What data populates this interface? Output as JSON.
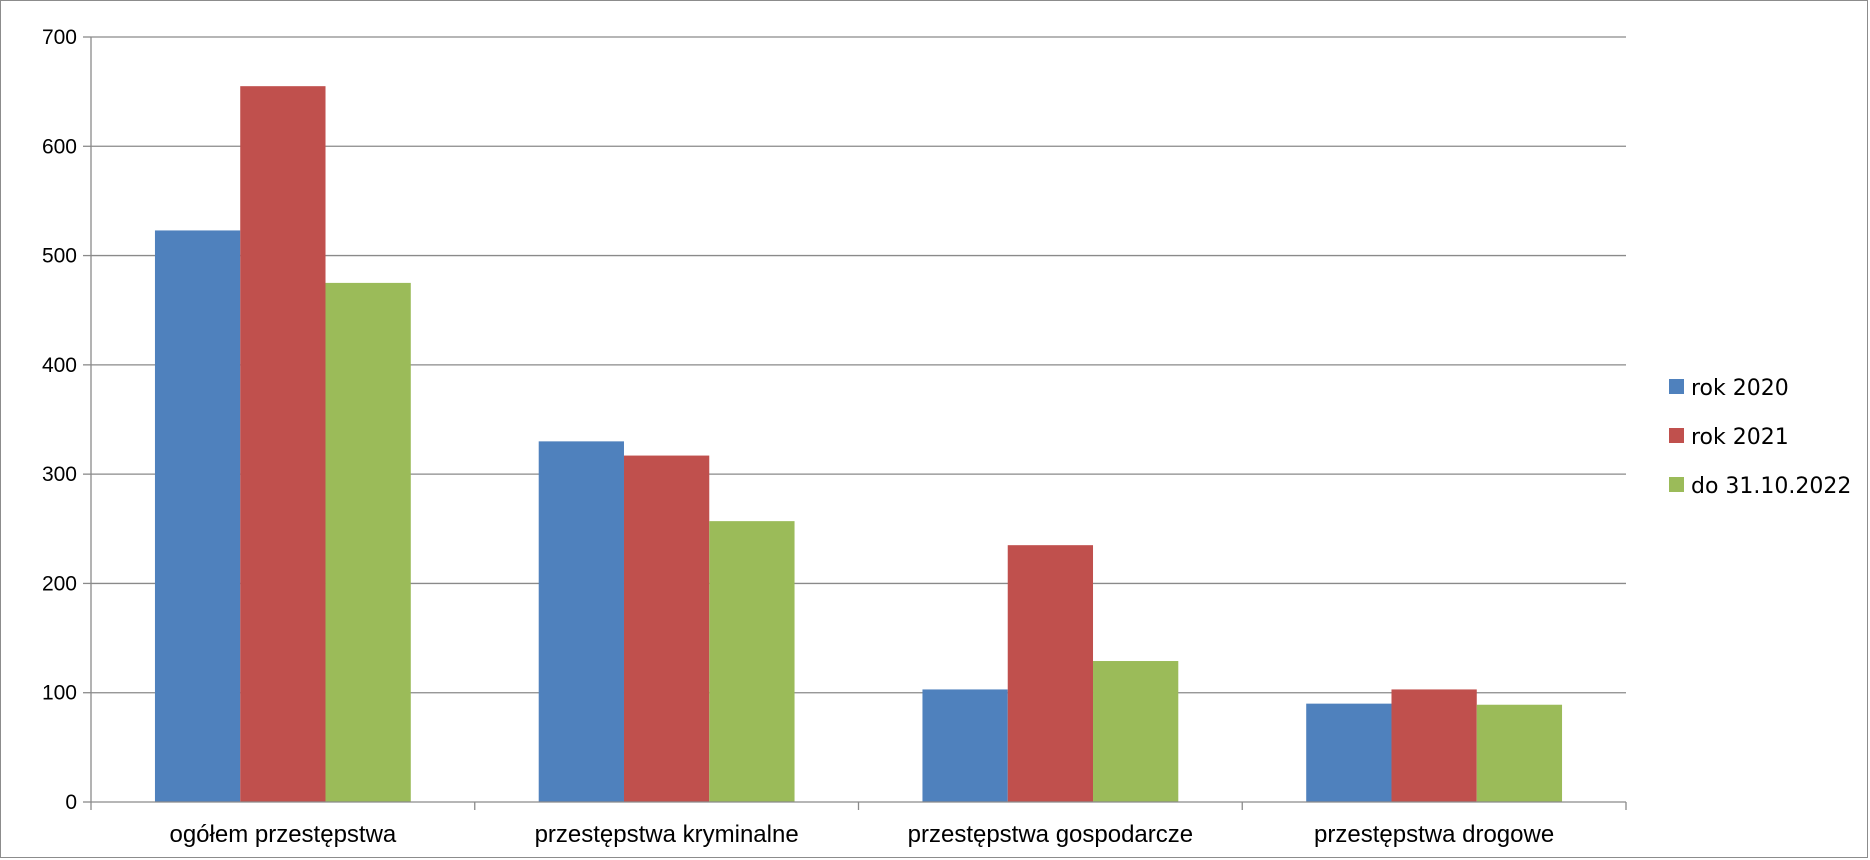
{
  "chart_data": {
    "type": "bar",
    "categories": [
      "ogółem przestępstwa",
      "przestępstwa kryminalne",
      "przestępstwa gospodarcze",
      "przestępstwa drogowe"
    ],
    "series": [
      {
        "name": "rok 2020",
        "color": "#4F81BD",
        "values": [
          523,
          330,
          103,
          90
        ]
      },
      {
        "name": "rok 2021",
        "color": "#C0504D",
        "values": [
          655,
          317,
          235,
          103
        ]
      },
      {
        "name": "do 31.10.2022",
        "color": "#9BBB59",
        "values": [
          475,
          257,
          129,
          89
        ]
      }
    ],
    "yticks": [
      0,
      100,
      200,
      300,
      400,
      500,
      600,
      700
    ],
    "ylim": [
      0,
      700
    ],
    "grid": true,
    "legend_position": "right",
    "title": "",
    "xlabel": "",
    "ylabel": ""
  }
}
